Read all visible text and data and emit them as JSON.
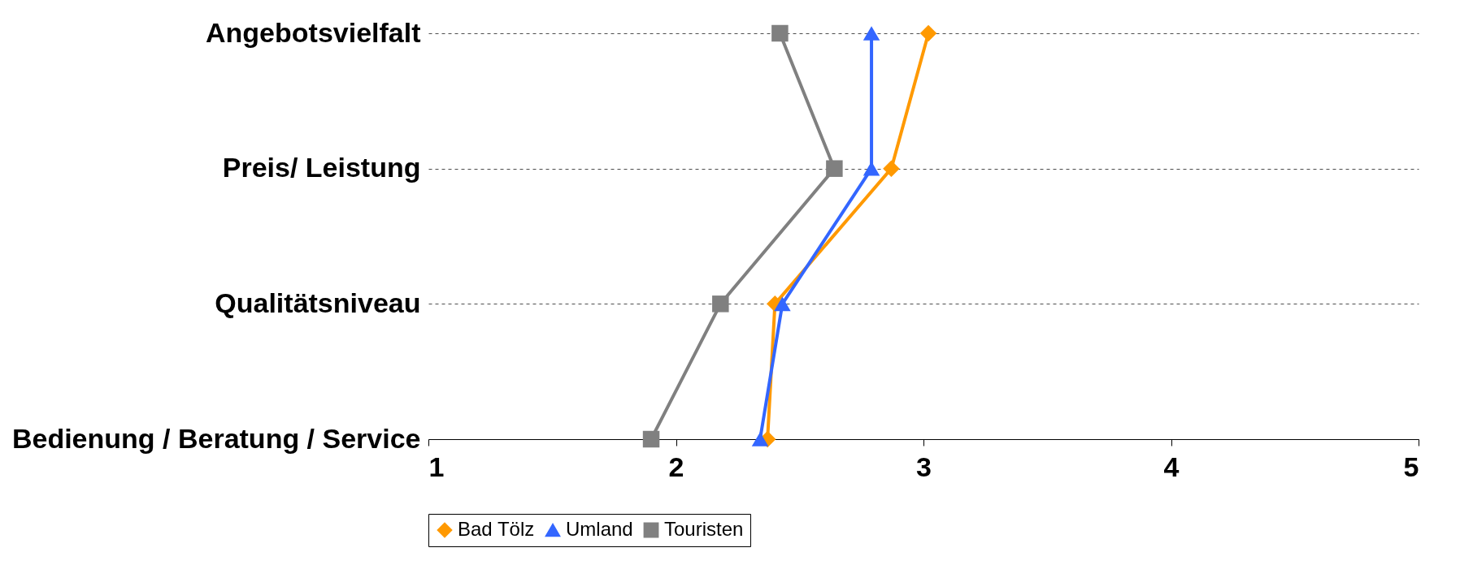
{
  "chart_data": {
    "type": "line",
    "orientation": "horizontal",
    "categories": [
      "Angebotsvielfalt",
      "Preis/ Leistung",
      "Qualitätsniveau",
      "Bedienung / Beratung / Service"
    ],
    "series": [
      {
        "name": "Bad Tölz",
        "color": "#ff9900",
        "marker": "diamond",
        "values": [
          3.02,
          2.87,
          2.4,
          2.37
        ]
      },
      {
        "name": "Umland",
        "color": "#3366ff",
        "marker": "triangle",
        "values": [
          2.79,
          2.79,
          2.43,
          2.34
        ]
      },
      {
        "name": "Touristen",
        "color": "#808080",
        "marker": "square",
        "values": [
          2.42,
          2.64,
          2.18,
          1.9
        ]
      }
    ],
    "xlim": [
      1,
      5
    ],
    "xticks": [
      1,
      2,
      3,
      4,
      5
    ],
    "grid": "y",
    "legend": "bottom",
    "line_style": "solid"
  }
}
